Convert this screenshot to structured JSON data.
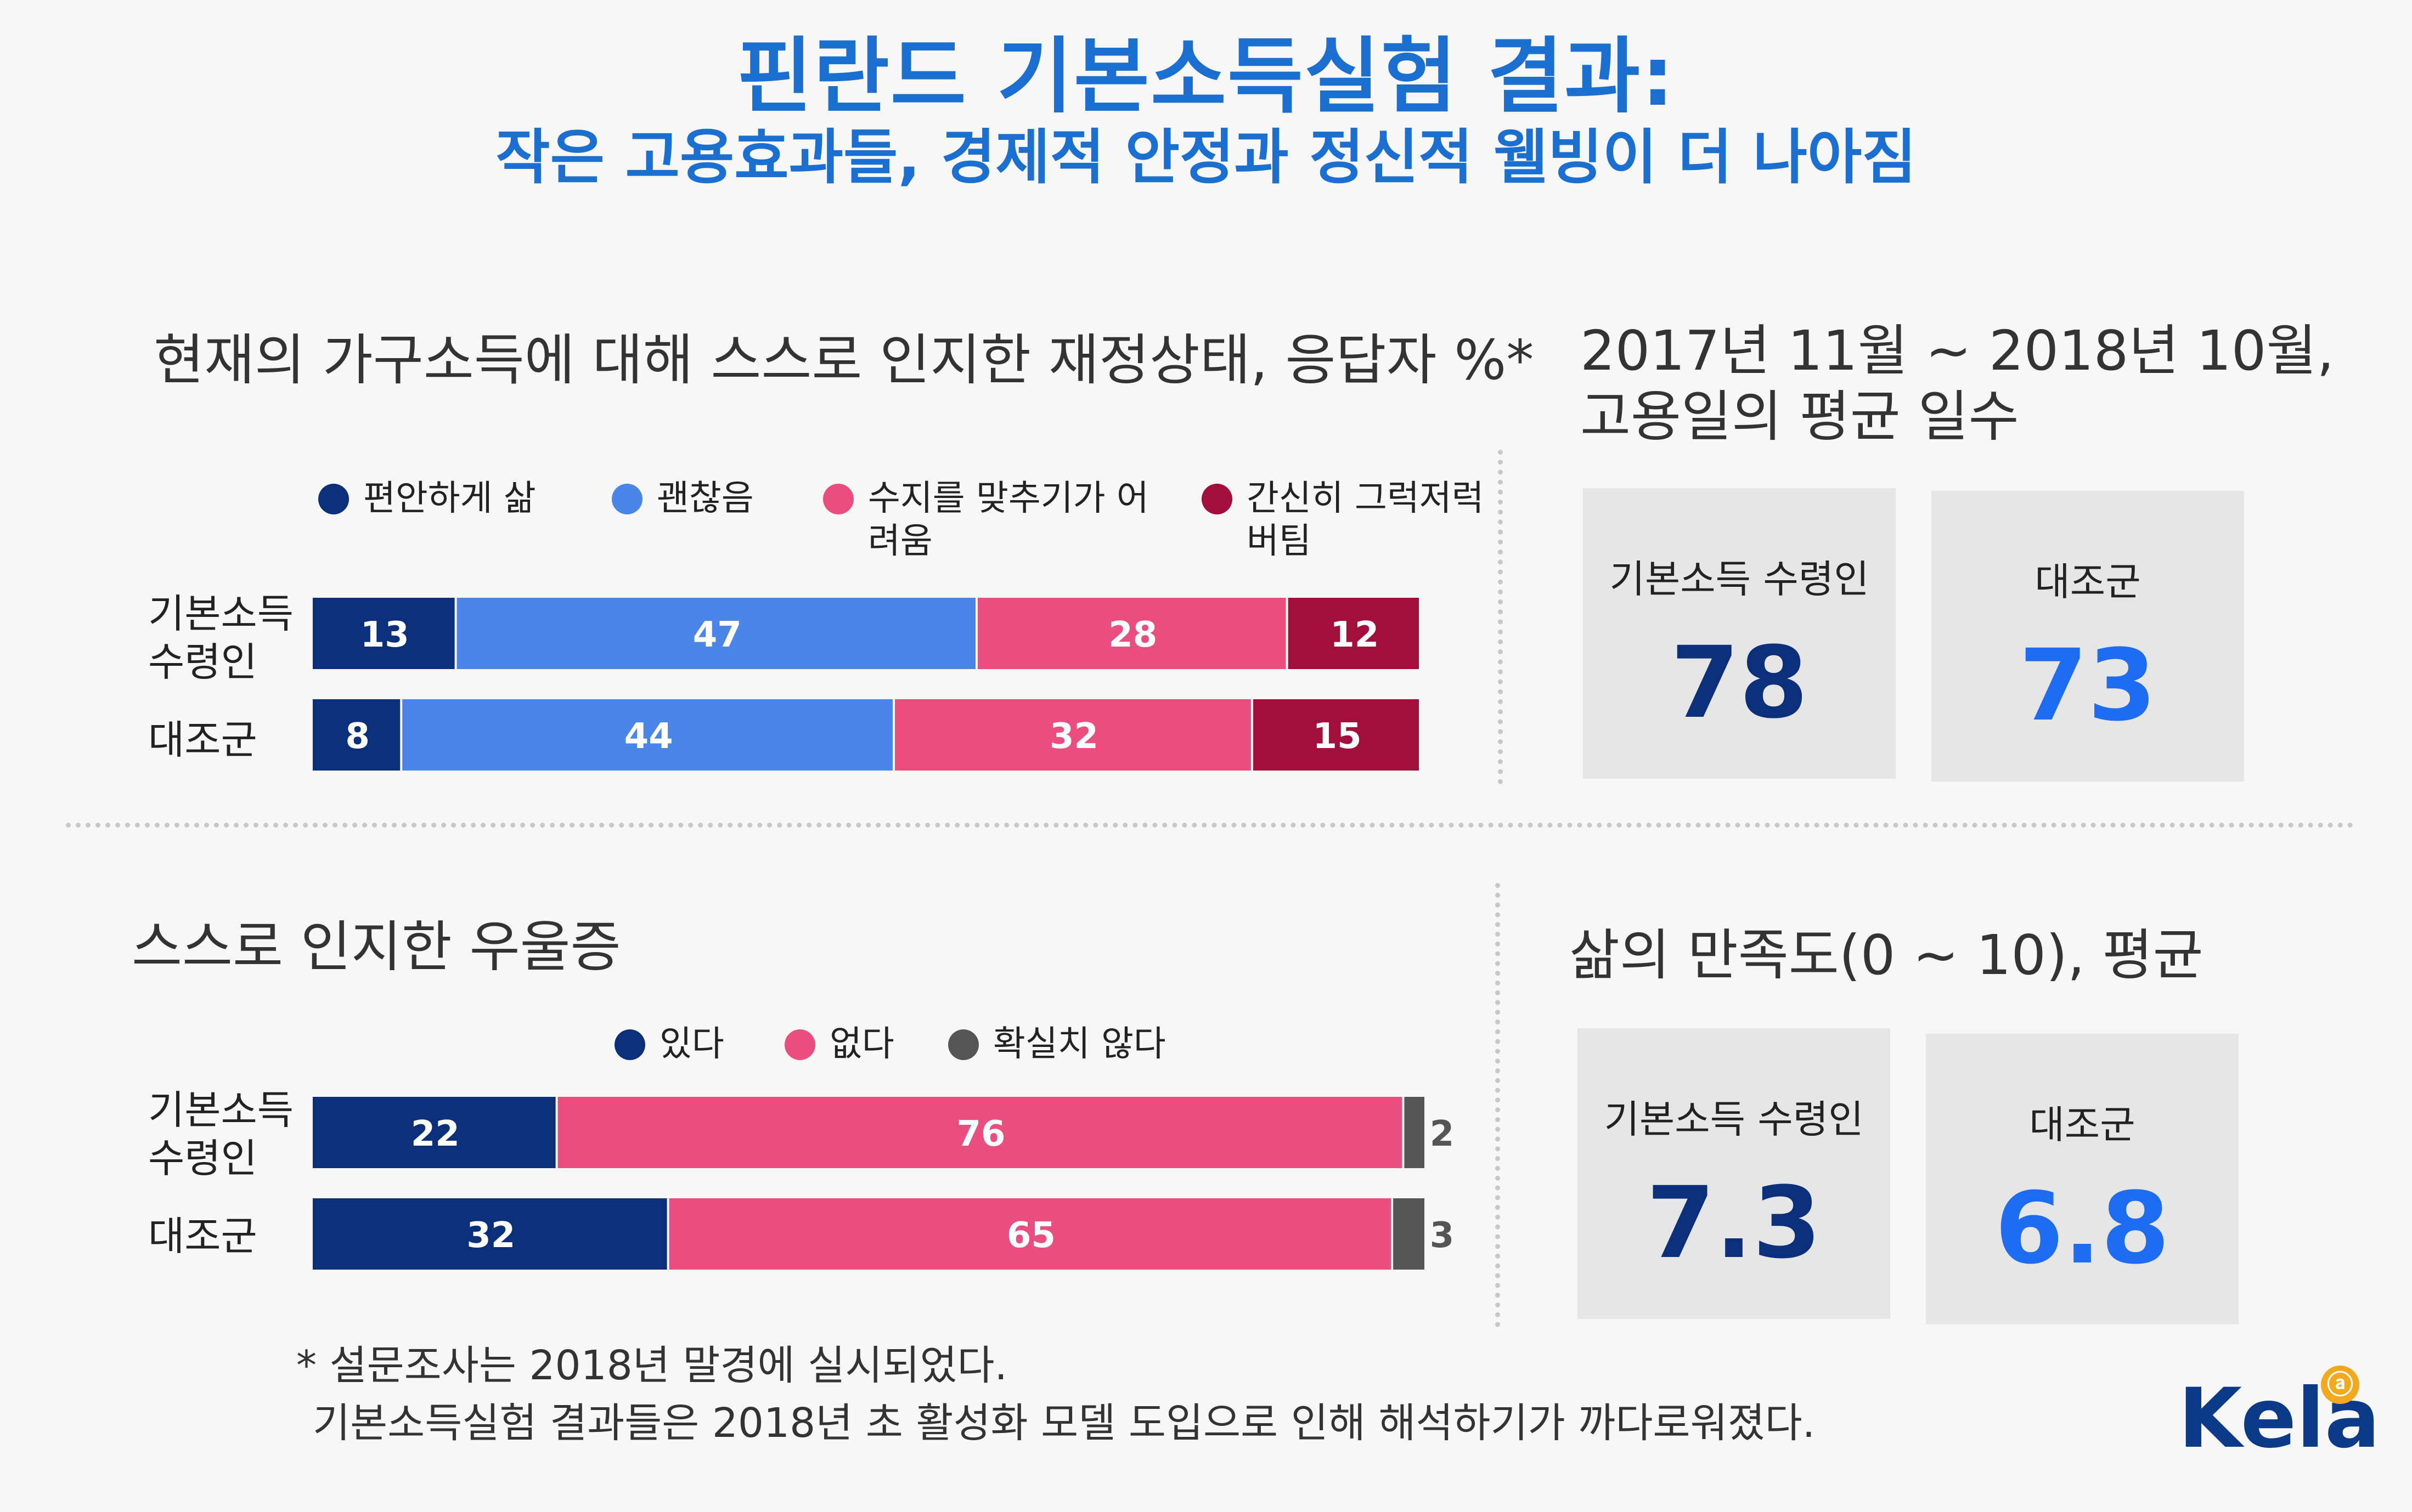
{
  "title": "핀란드 기본소득실험 결과:",
  "subtitle": "작은 고용효과들, 경제적 안정과 정신적 웰빙이 더 나아짐",
  "colors": {
    "dark_navy": "#0b2f7a",
    "blue": "#4a86e8",
    "pink": "#ea4d7f",
    "crimson": "#a30f3d",
    "gray": "#555555",
    "title_blue": "#1a6fd1",
    "card_value_dark": "#0b2f7a",
    "card_value_blue": "#1e6cf0"
  },
  "finance": {
    "title": "현재의 가구소득에 대해 스스로 인지한 재정상태, 응답자 %*",
    "legend": [
      "편안하게 삶",
      "괜찮음",
      "수지를 맞추기가 어려움",
      "간신히 그럭저럭 버팀"
    ],
    "rows": [
      "기본소득 수령인",
      "대조군"
    ]
  },
  "depression": {
    "title": "스스로 인지한 우울증",
    "legend": [
      "있다",
      "없다",
      "확실치 않다"
    ],
    "rows": [
      "기본소득 수령인",
      "대조군"
    ]
  },
  "employment": {
    "title_line1": "2017년 11월 ~ 2018년 10월,",
    "title_line2": "고용일의 평균 일수",
    "cards": [
      {
        "label": "기본소득 수령인",
        "value": "78"
      },
      {
        "label": "대조군",
        "value": "73"
      }
    ]
  },
  "satisfaction": {
    "title": "삶의 만족도(0 ~ 10), 평균",
    "cards": [
      {
        "label": "기본소득 수령인",
        "value": "7.3"
      },
      {
        "label": "대조군",
        "value": "6.8"
      }
    ]
  },
  "footnote": {
    "line1": "* 설문조사는 2018년 말경에 실시되었다.",
    "line2": "기본소득실험 결과들은 2018년 초 활성화 모델 도입으로 인해 해석하기가 까다로워졌다."
  },
  "logo": {
    "text": "Kela"
  },
  "chart_data": [
    {
      "type": "bar",
      "orientation": "horizontal",
      "stacked": true,
      "unit": "%",
      "title": "현재의 가구소득에 대해 스스로 인지한 재정상태, 응답자 %*",
      "categories": [
        "기본소득 수령인",
        "대조군"
      ],
      "series": [
        {
          "name": "편안하게 삶",
          "values": [
            13,
            8
          ],
          "color": "#0b2f7a"
        },
        {
          "name": "괜찮음",
          "values": [
            47,
            44
          ],
          "color": "#4a86e8"
        },
        {
          "name": "수지를 맞추기가 어려움",
          "values": [
            28,
            32
          ],
          "color": "#ea4d7f"
        },
        {
          "name": "간신히 그럭저럭 버팀",
          "values": [
            12,
            15
          ],
          "color": "#a30f3d"
        }
      ],
      "legend": "top",
      "grid": false
    },
    {
      "type": "bar",
      "orientation": "horizontal",
      "stacked": true,
      "unit": "%",
      "title": "스스로 인지한 우울증",
      "categories": [
        "기본소득 수령인",
        "대조군"
      ],
      "series": [
        {
          "name": "있다",
          "values": [
            22,
            32
          ],
          "color": "#0b2f7a"
        },
        {
          "name": "없다",
          "values": [
            76,
            65
          ],
          "color": "#ea4d7f"
        },
        {
          "name": "확실치 않다",
          "values": [
            2,
            3
          ],
          "color": "#555555"
        }
      ],
      "legend": "top",
      "grid": false
    }
  ]
}
